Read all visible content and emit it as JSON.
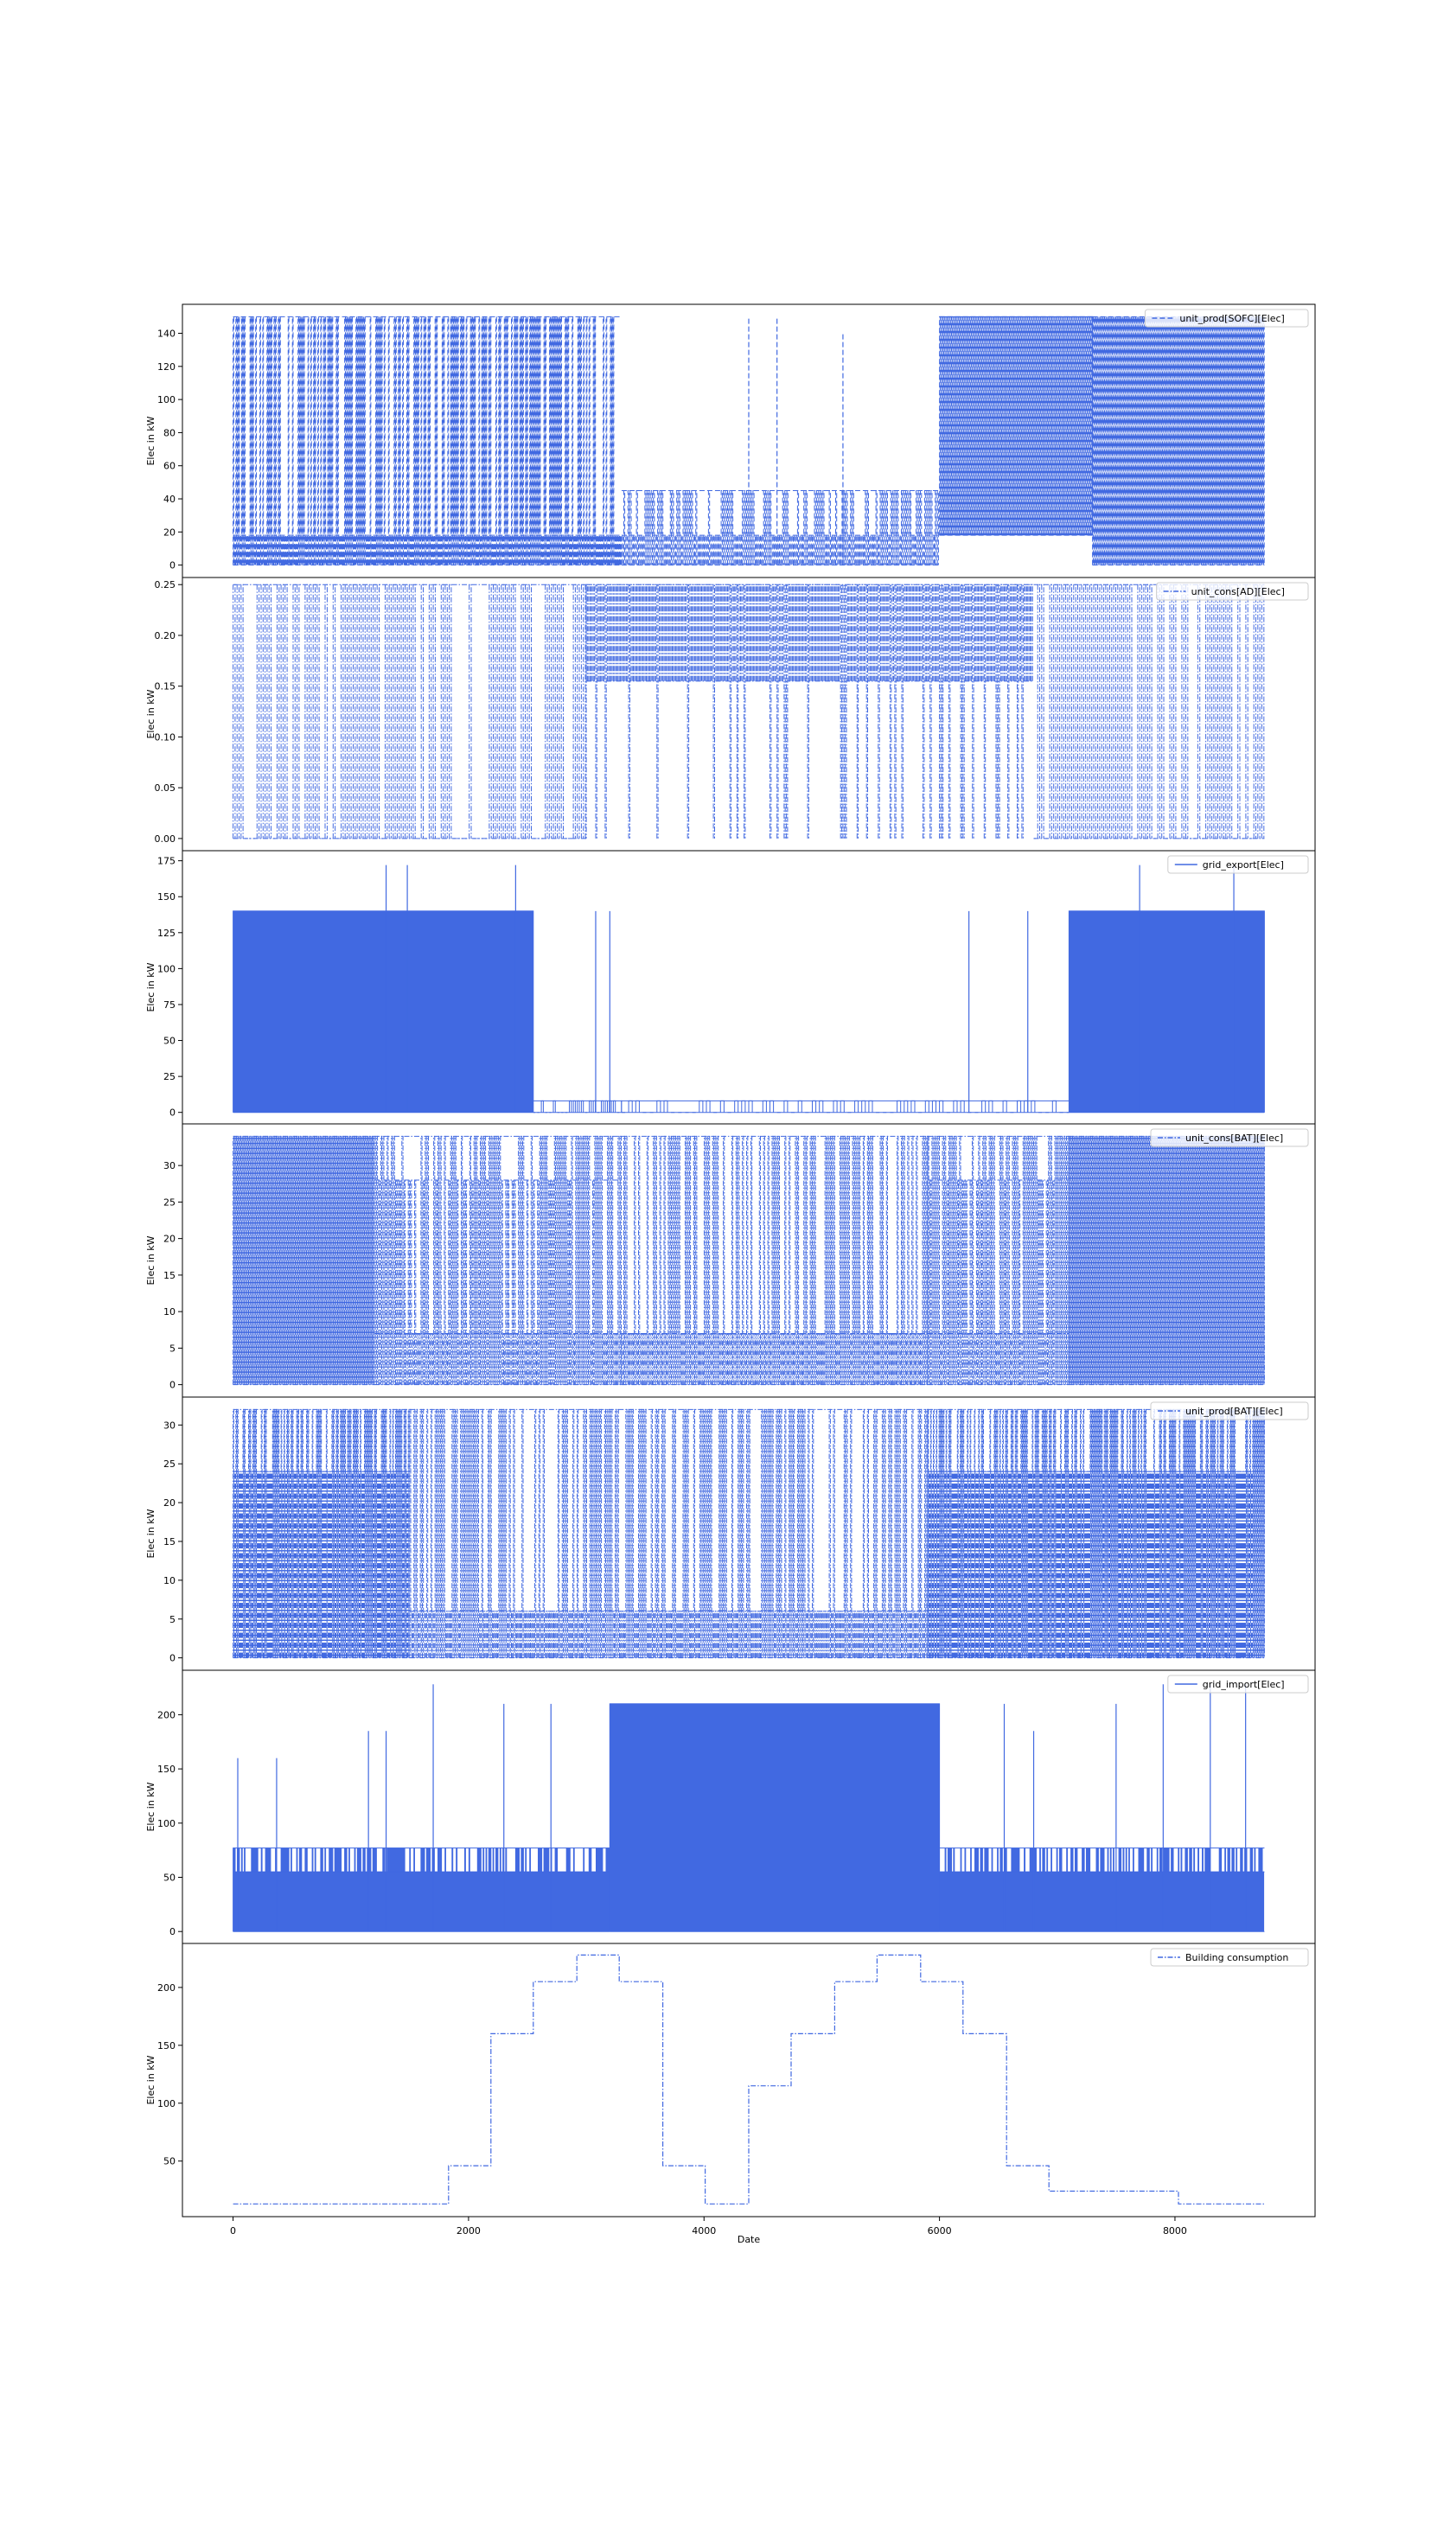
{
  "figure": {
    "xlabel": "Date",
    "xticks": [
      "0",
      "2000",
      "4000",
      "6000",
      "8000"
    ],
    "xtick_values": [
      0,
      2000,
      4000,
      6000,
      8000
    ],
    "xlim": [
      -430,
      9190
    ],
    "line_color": "#4169E1"
  },
  "chart_data": [
    {
      "type": "line",
      "series": [
        {
          "name": "unit_prod[SOFC][Elec]",
          "style": "dashed"
        }
      ],
      "ylabel": "Elec in kW",
      "yticks": [
        "0",
        "20",
        "40",
        "60",
        "80",
        "100",
        "120",
        "140"
      ],
      "ytick_values": [
        0,
        20,
        40,
        60,
        80,
        100,
        120,
        140
      ],
      "ylim": [
        -7.5,
        157.5
      ],
      "x_range": [
        0,
        8760
      ],
      "segments": [
        {
          "x": [
            0,
            3300
          ],
          "levels": [
            0,
            18,
            150
          ],
          "pattern": "dense"
        },
        {
          "x": [
            3300,
            6000
          ],
          "levels": [
            0,
            18,
            45
          ],
          "pattern": "mid"
        },
        {
          "x": [
            6000,
            7300
          ],
          "levels": [
            18,
            150
          ],
          "pattern": "dense"
        },
        {
          "x": [
            7300,
            8760
          ],
          "levels": [
            0,
            150
          ],
          "pattern": "dense"
        }
      ],
      "spikes": [
        [
          4380,
          150
        ],
        [
          4620,
          150
        ],
        [
          5180,
          140
        ]
      ]
    },
    {
      "type": "line",
      "series": [
        {
          "name": "unit_cons[AD][Elec]",
          "style": "dashdot"
        }
      ],
      "ylabel": "Elec in kW",
      "yticks": [
        "0.00",
        "0.05",
        "0.10",
        "0.15",
        "0.20",
        "0.25"
      ],
      "ytick_values": [
        0,
        0.05,
        0.1,
        0.15,
        0.2,
        0.25
      ],
      "ylim": [
        -0.012,
        0.257
      ],
      "x_range": [
        0,
        8760
      ],
      "segments": [
        {
          "x": [
            0,
            3000
          ],
          "levels": [
            0,
            0.25
          ],
          "pattern": "sparse"
        },
        {
          "x": [
            3000,
            6800
          ],
          "levels": [
            0.155,
            0.25
          ],
          "pattern": "band"
        },
        {
          "x": [
            6800,
            8760
          ],
          "levels": [
            0,
            0.25
          ],
          "pattern": "sparse"
        }
      ]
    },
    {
      "type": "line",
      "series": [
        {
          "name": "grid_export[Elec]",
          "style": "solid"
        }
      ],
      "ylabel": "Elec in kW",
      "yticks": [
        "0",
        "25",
        "50",
        "75",
        "100",
        "125",
        "150",
        "175"
      ],
      "ytick_values": [
        0,
        25,
        50,
        75,
        100,
        125,
        150,
        175
      ],
      "ylim": [
        -8,
        182
      ],
      "x_range": [
        0,
        8760
      ],
      "segments": [
        {
          "x": [
            0,
            2550
          ],
          "levels": [
            0,
            140
          ],
          "pattern": "dense"
        },
        {
          "x": [
            2550,
            3300
          ],
          "levels": [
            0,
            8
          ],
          "pattern": "sparse"
        },
        {
          "x": [
            3300,
            7100
          ],
          "levels": [
            0,
            8
          ],
          "pattern": "low"
        },
        {
          "x": [
            7100,
            8760
          ],
          "levels": [
            0,
            140
          ],
          "pattern": "dense"
        }
      ],
      "spikes": [
        [
          1300,
          172
        ],
        [
          1480,
          172
        ],
        [
          2400,
          172
        ],
        [
          3080,
          140
        ],
        [
          3200,
          140
        ],
        [
          6250,
          140
        ],
        [
          6750,
          140
        ],
        [
          7700,
          172
        ],
        [
          8500,
          172
        ]
      ]
    },
    {
      "type": "line",
      "series": [
        {
          "name": "unit_cons[BAT][Elec]",
          "style": "dashdot"
        }
      ],
      "ylabel": "Elec in kW",
      "yticks": [
        "0",
        "5",
        "10",
        "15",
        "20",
        "25",
        "30"
      ],
      "ytick_values": [
        0,
        5,
        10,
        15,
        20,
        25,
        30
      ],
      "ylim": [
        -1.7,
        35.7
      ],
      "x_range": [
        0,
        8760
      ],
      "segments": [
        {
          "x": [
            0,
            1200
          ],
          "levels": [
            0,
            34
          ],
          "pattern": "dense"
        },
        {
          "x": [
            1200,
            3300
          ],
          "levels": [
            0,
            7,
            28,
            34
          ],
          "pattern": "mid"
        },
        {
          "x": [
            3300,
            5900
          ],
          "levels": [
            0,
            7,
            34
          ],
          "pattern": "mid"
        },
        {
          "x": [
            5900,
            7100
          ],
          "levels": [
            0,
            7,
            28,
            34
          ],
          "pattern": "mid"
        },
        {
          "x": [
            7100,
            8760
          ],
          "levels": [
            0,
            34
          ],
          "pattern": "dense"
        }
      ]
    },
    {
      "type": "line",
      "series": [
        {
          "name": "unit_prod[BAT][Elec]",
          "style": "dashdot"
        }
      ],
      "ylabel": "Elec in kW",
      "yticks": [
        "0",
        "5",
        "10",
        "15",
        "20",
        "25",
        "30"
      ],
      "ytick_values": [
        0,
        5,
        10,
        15,
        20,
        25,
        30
      ],
      "ylim": [
        -1.6,
        33.6
      ],
      "x_range": [
        0,
        8760
      ],
      "segments": [
        {
          "x": [
            0,
            1500
          ],
          "levels": [
            0,
            24,
            32
          ],
          "pattern": "dense"
        },
        {
          "x": [
            1500,
            5900
          ],
          "levels": [
            0,
            6,
            32
          ],
          "pattern": "mid"
        },
        {
          "x": [
            5900,
            8760
          ],
          "levels": [
            0,
            24,
            32
          ],
          "pattern": "dense"
        }
      ]
    },
    {
      "type": "line",
      "series": [
        {
          "name": "grid_import[Elec]",
          "style": "solid"
        }
      ],
      "ylabel": "Elec in kW",
      "yticks": [
        "0",
        "50",
        "100",
        "150",
        "200"
      ],
      "ytick_values": [
        0,
        50,
        100,
        150,
        200
      ],
      "ylim": [
        -11,
        241
      ],
      "x_range": [
        0,
        8760
      ],
      "segments": [
        {
          "x": [
            0,
            3200
          ],
          "levels": [
            0,
            55,
            77
          ],
          "pattern": "dense"
        },
        {
          "x": [
            3200,
            6000
          ],
          "levels": [
            0,
            210
          ],
          "pattern": "dense"
        },
        {
          "x": [
            6000,
            8760
          ],
          "levels": [
            0,
            55,
            77
          ],
          "pattern": "dense"
        }
      ],
      "spikes": [
        [
          40,
          160
        ],
        [
          370,
          160
        ],
        [
          1150,
          185
        ],
        [
          1300,
          185
        ],
        [
          1700,
          228
        ],
        [
          2300,
          210
        ],
        [
          2700,
          210
        ],
        [
          6550,
          210
        ],
        [
          6800,
          185
        ],
        [
          7500,
          210
        ],
        [
          7900,
          228
        ],
        [
          8300,
          228
        ],
        [
          8600,
          228
        ]
      ]
    },
    {
      "type": "line",
      "series": [
        {
          "name": "Building consumption",
          "style": "dashdot"
        }
      ],
      "ylabel": "Elec in kW",
      "yticks": [
        "50",
        "100",
        "150",
        "200"
      ],
      "ytick_values": [
        50,
        100,
        150,
        200
      ],
      "ylim": [
        2,
        238
      ],
      "x_range": [
        0,
        8760
      ],
      "steps": [
        [
          0,
          13
        ],
        [
          1830,
          13
        ],
        [
          1830,
          46
        ],
        [
          2190,
          46
        ],
        [
          2190,
          160
        ],
        [
          2550,
          160
        ],
        [
          2550,
          205
        ],
        [
          2920,
          205
        ],
        [
          2920,
          228
        ],
        [
          3280,
          228
        ],
        [
          3280,
          205
        ],
        [
          3650,
          205
        ],
        [
          3650,
          46
        ],
        [
          4010,
          46
        ],
        [
          4010,
          13
        ],
        [
          4380,
          13
        ],
        [
          4380,
          115
        ],
        [
          4740,
          115
        ],
        [
          4740,
          160
        ],
        [
          5110,
          160
        ],
        [
          5110,
          205
        ],
        [
          5470,
          205
        ],
        [
          5470,
          228
        ],
        [
          5840,
          228
        ],
        [
          5840,
          205
        ],
        [
          6200,
          205
        ],
        [
          6200,
          160
        ],
        [
          6570,
          160
        ],
        [
          6570,
          46
        ],
        [
          6930,
          46
        ],
        [
          6930,
          24
        ],
        [
          8030,
          24
        ],
        [
          8030,
          13
        ],
        [
          8760,
          13
        ]
      ]
    }
  ]
}
